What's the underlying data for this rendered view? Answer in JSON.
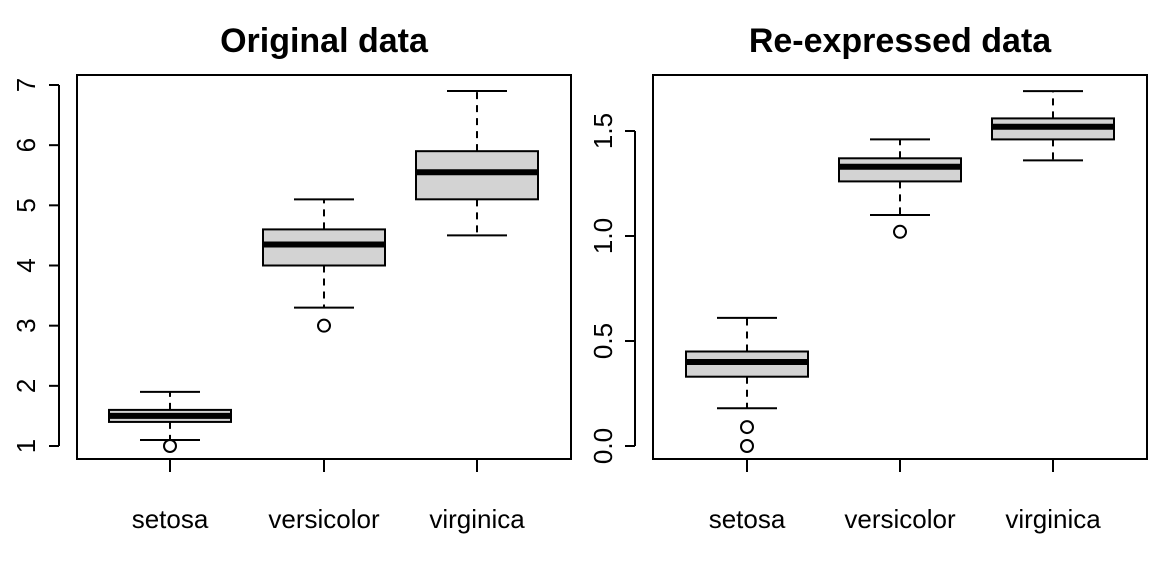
{
  "chart_data": [
    {
      "type": "boxplot",
      "title": "Original data",
      "categories": [
        "setosa",
        "versicolor",
        "virginica"
      ],
      "ylim": [
        1,
        7
      ],
      "yticks": [
        "1",
        "2",
        "3",
        "4",
        "5",
        "6",
        "7"
      ],
      "box_color": "#d3d3d3",
      "boxes": [
        {
          "category": "setosa",
          "lower_whisker": 1.1,
          "q1": 1.4,
          "median": 1.5,
          "q3": 1.6,
          "upper_whisker": 1.9,
          "outliers": [
            1.0
          ]
        },
        {
          "category": "versicolor",
          "lower_whisker": 3.3,
          "q1": 4.0,
          "median": 4.35,
          "q3": 4.6,
          "upper_whisker": 5.1,
          "outliers": [
            3.0
          ]
        },
        {
          "category": "virginica",
          "lower_whisker": 4.5,
          "q1": 5.1,
          "median": 5.55,
          "q3": 5.9,
          "upper_whisker": 6.9,
          "outliers": []
        }
      ]
    },
    {
      "type": "boxplot",
      "title": "Re-expressed data",
      "categories": [
        "setosa",
        "versicolor",
        "virginica"
      ],
      "ylim": [
        0,
        1.7
      ],
      "yticks": [
        "0.0",
        "0.5",
        "1.0",
        "1.5"
      ],
      "box_color": "#d3d3d3",
      "boxes": [
        {
          "category": "setosa",
          "lower_whisker": 0.18,
          "q1": 0.33,
          "median": 0.4,
          "q3": 0.45,
          "upper_whisker": 0.61,
          "outliers": [
            0.09,
            0.0
          ]
        },
        {
          "category": "versicolor",
          "lower_whisker": 1.1,
          "q1": 1.26,
          "median": 1.33,
          "q3": 1.37,
          "upper_whisker": 1.46,
          "outliers": [
            1.02
          ]
        },
        {
          "category": "virginica",
          "lower_whisker": 1.36,
          "q1": 1.46,
          "median": 1.52,
          "q3": 1.56,
          "upper_whisker": 1.69,
          "outliers": []
        }
      ]
    }
  ]
}
